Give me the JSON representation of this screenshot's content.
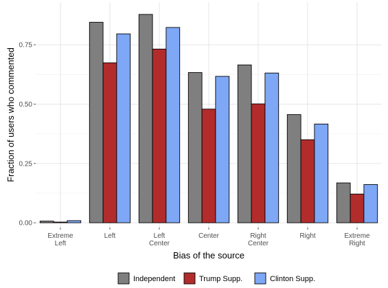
{
  "chart_data": {
    "type": "bar",
    "xlabel": "Bias of the source",
    "ylabel": "Fraction of users who commented",
    "ylim": [
      -0.02,
      0.93
    ],
    "yticks": [
      0.0,
      0.25,
      0.5,
      0.75
    ],
    "ytick_labels": [
      "0.00",
      "0.25",
      "0.50",
      "0.75"
    ],
    "grid": true,
    "legend_position": "bottom",
    "categories": [
      [
        "Extreme",
        "Left"
      ],
      [
        "Left"
      ],
      [
        "Left",
        "Center"
      ],
      [
        "Center"
      ],
      [
        "Right",
        "Center"
      ],
      [
        "Right"
      ],
      [
        "Extreme",
        "Right"
      ]
    ],
    "series": [
      {
        "name": "Independent",
        "color": "#7f7f7f",
        "values": [
          0.007,
          0.845,
          0.878,
          0.633,
          0.665,
          0.456,
          0.168
        ]
      },
      {
        "name": "Trump Supp.",
        "color": "#b22c2c",
        "values": [
          0.003,
          0.674,
          0.732,
          0.479,
          0.501,
          0.35,
          0.121
        ]
      },
      {
        "name": "Clinton Supp.",
        "color": "#7ea7f5",
        "values": [
          0.009,
          0.796,
          0.823,
          0.617,
          0.631,
          0.416,
          0.161
        ]
      }
    ]
  }
}
